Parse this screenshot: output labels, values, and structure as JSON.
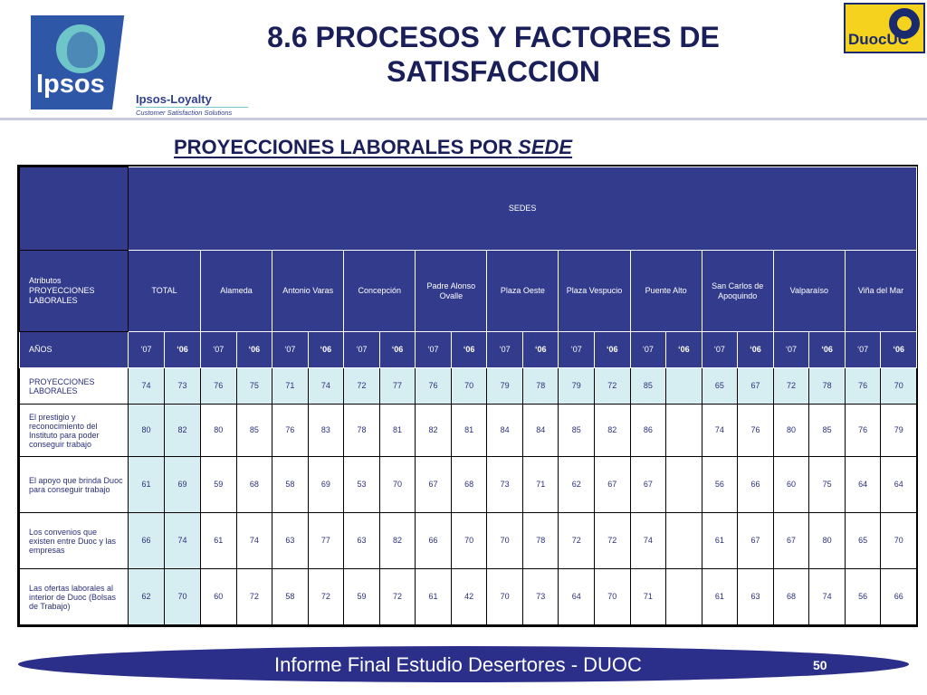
{
  "logos": {
    "ipsos_word": "Ipsos",
    "loyalty_line1": "Ipsos-Loyalty",
    "loyalty_line2": "Customer Satisfaction Solutions",
    "duoc_word": "DuocUC"
  },
  "header": {
    "title_line1": "8.6 PROCESOS Y FACTORES DE",
    "title_line2": "SATISFACCION",
    "subtitle_main": "PROYECCIONES LABORALES POR ",
    "subtitle_em": "SEDE"
  },
  "table": {
    "sedes_label": "SEDES",
    "attr_label": "Atributos PROYECCIONES LABORALES",
    "years_label": "AÑOS",
    "year_07": "‘07",
    "year_06": "‘06",
    "groups": [
      {
        "key": "total",
        "label": "TOTAL"
      },
      {
        "key": "alameda",
        "label": "Alameda"
      },
      {
        "key": "antonio_varas",
        "label": "Antonio Varas"
      },
      {
        "key": "concepcion",
        "label": "Concepción"
      },
      {
        "key": "padre_alonso_ovalle",
        "label": "Padre Alonso Ovalle"
      },
      {
        "key": "plaza_oeste",
        "label": "Plaza Oeste"
      },
      {
        "key": "plaza_vespucio",
        "label": "Plaza Vespucio"
      },
      {
        "key": "puente_alto",
        "label": "Puente Alto"
      },
      {
        "key": "san_carlos",
        "label": "San Carlos de Apoquindo"
      },
      {
        "key": "valparaiso",
        "label": "Valparaíso"
      },
      {
        "key": "vina_del_mar",
        "label": "Viña del Mar"
      }
    ],
    "rows": [
      {
        "label": "PROYECCIONES LABORALES",
        "values": [
          "74",
          "73",
          "76",
          "75",
          "71",
          "74",
          "72",
          "77",
          "76",
          "70",
          "79",
          "78",
          "79",
          "72",
          "85",
          "",
          "65",
          "67",
          "72",
          "78",
          "76",
          "70"
        ]
      },
      {
        "label": "El prestigio y reconocimiento del Instituto para poder conseguir trabajo",
        "values": [
          "80",
          "82",
          "80",
          "85",
          "76",
          "83",
          "78",
          "81",
          "82",
          "81",
          "84",
          "84",
          "85",
          "82",
          "86",
          "",
          "74",
          "76",
          "80",
          "85",
          "76",
          "79"
        ]
      },
      {
        "label": "El apoyo que brinda Duoc para conseguir trabajo",
        "values": [
          "61",
          "69",
          "59",
          "68",
          "58",
          "69",
          "53",
          "70",
          "67",
          "68",
          "73",
          "71",
          "62",
          "67",
          "67",
          "",
          "56",
          "66",
          "60",
          "75",
          "64",
          "64"
        ]
      },
      {
        "label": "Los convenios que existen entre Duoc y las empresas",
        "values": [
          "66",
          "74",
          "61",
          "74",
          "63",
          "77",
          "63",
          "82",
          "66",
          "70",
          "70",
          "78",
          "72",
          "72",
          "74",
          "",
          "61",
          "67",
          "67",
          "80",
          "65",
          "70"
        ]
      },
      {
        "label": "Las ofertas laborales al interior de Duoc (Bolsas de Trabajo)",
        "values": [
          "62",
          "70",
          "60",
          "72",
          "58",
          "72",
          "59",
          "72",
          "61",
          "42",
          "70",
          "73",
          "64",
          "70",
          "71",
          "",
          "61",
          "63",
          "68",
          "74",
          "56",
          "66"
        ]
      }
    ]
  },
  "footer": {
    "text": "Informe Final Estudio Desertores - DUOC",
    "page_number": "50"
  }
}
